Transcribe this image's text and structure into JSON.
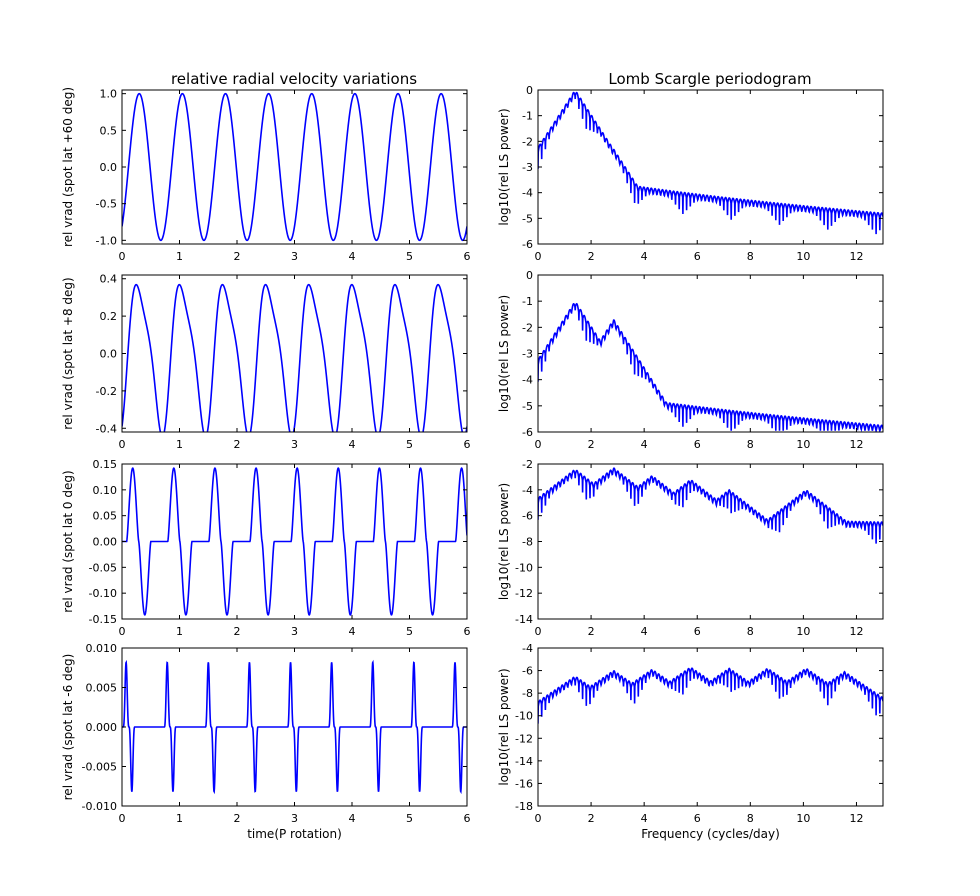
{
  "titles": {
    "left": "relative radial velocity variations",
    "right": "Lomb Scargle periodogram"
  },
  "colors": {
    "line": "#0000ff",
    "axes": "#000000",
    "background": "#ffffff"
  },
  "chart_data": [
    {
      "type": "line",
      "column": "left",
      "row": 0,
      "title": "relative radial velocity variations",
      "xlabel": "",
      "ylabel": "rel vrad (spot lat +60 deg)",
      "xlim": [
        0,
        6
      ],
      "ylim": [
        -1.05,
        1.05
      ],
      "xticks": [
        0,
        1,
        2,
        3,
        4,
        5,
        6
      ],
      "xticklabels": [
        "0",
        "1",
        "2",
        "3",
        "4",
        "5",
        "6"
      ],
      "yticks": [
        -1.0,
        -0.5,
        0.0,
        0.5,
        1.0
      ],
      "yticklabels": [
        "-1.0",
        "-0.5",
        "0.0",
        "0.5",
        "1.0"
      ],
      "grid": false,
      "series": [
        {
          "model": "sine",
          "period": 0.75,
          "amplitude": 1.0,
          "phase_offset": 0.3
        }
      ]
    },
    {
      "type": "line",
      "column": "left",
      "row": 1,
      "xlabel": "",
      "ylabel": "rel vrad (spot lat +8 deg)",
      "xlim": [
        0,
        6
      ],
      "ylim": [
        -0.42,
        0.42
      ],
      "xticks": [
        0,
        1,
        2,
        3,
        4,
        5,
        6
      ],
      "xticklabels": [
        "0",
        "1",
        "2",
        "3",
        "4",
        "5",
        "6"
      ],
      "yticks": [
        -0.4,
        -0.2,
        0.0,
        0.2,
        0.4
      ],
      "yticklabels": [
        "-0.4",
        "-0.2",
        "0.0",
        "0.2",
        "0.4"
      ],
      "grid": false,
      "series": [
        {
          "model": "skewed_sine",
          "period": 0.75,
          "amplitude": 0.4,
          "phase_offset": 0.3
        }
      ]
    },
    {
      "type": "line",
      "column": "left",
      "row": 2,
      "xlabel": "",
      "ylabel": "rel vrad (spot lat 0 deg)",
      "xlim": [
        0,
        6
      ],
      "ylim": [
        -0.15,
        0.15
      ],
      "xticks": [
        0,
        1,
        2,
        3,
        4,
        5,
        6
      ],
      "xticklabels": [
        "0",
        "1",
        "2",
        "3",
        "4",
        "5",
        "6"
      ],
      "yticks": [
        -0.15,
        -0.1,
        -0.05,
        0.0,
        0.05,
        0.1,
        0.15
      ],
      "yticklabels": [
        "-0.15",
        "-0.10",
        "-0.05",
        "0.00",
        "0.05",
        "0.10",
        "0.15"
      ],
      "grid": false,
      "series": [
        {
          "model": "pulse_pair",
          "period": 0.715,
          "amplitude": 0.142,
          "first_peak": 0.26,
          "active_width": 0.42
        }
      ]
    },
    {
      "type": "line",
      "column": "left",
      "row": 3,
      "xlabel": "time(P rotation)",
      "ylabel": "rel vrad (spot lat -6 deg)",
      "xlim": [
        0,
        6
      ],
      "ylim": [
        -0.01,
        0.01
      ],
      "xticks": [
        0,
        1,
        2,
        3,
        4,
        5,
        6
      ],
      "xticklabels": [
        "0",
        "1",
        "2",
        "3",
        "4",
        "5",
        "6"
      ],
      "yticks": [
        -0.01,
        -0.005,
        0.0,
        0.005,
        0.01
      ],
      "yticklabels": [
        "-0.010",
        "-0.005",
        "0.000",
        "0.005",
        "0.010"
      ],
      "grid": false,
      "series": [
        {
          "model": "spike_pair",
          "period": 0.715,
          "amplitude": 0.0082,
          "first_peak": 0.2,
          "active_width": 0.2
        }
      ]
    },
    {
      "type": "line",
      "column": "right",
      "row": 0,
      "title": "Lomb Scargle periodogram",
      "xlabel": "",
      "ylabel": "log10(rel LS power)",
      "xlim": [
        0,
        13
      ],
      "ylim": [
        -6,
        0
      ],
      "xticks": [
        0,
        2,
        4,
        6,
        8,
        10,
        12
      ],
      "xticklabels": [
        "0",
        "2",
        "4",
        "6",
        "8",
        "10",
        "12"
      ],
      "yticks": [
        -6,
        -5,
        -4,
        -3,
        -2,
        -1,
        0
      ],
      "yticklabels": [
        "-6",
        "-5",
        "-4",
        "-3",
        "-2",
        "-1",
        "0"
      ],
      "grid": false,
      "peaks": [
        {
          "x": 1.4,
          "y": 0.0
        },
        {
          "x": 2.85,
          "y": -2.3
        }
      ],
      "baseline": {
        "start": -2.8,
        "end": -4.8
      }
    },
    {
      "type": "line",
      "column": "right",
      "row": 1,
      "xlabel": "",
      "ylabel": "log10(rel LS power)",
      "xlim": [
        0,
        13
      ],
      "ylim": [
        -6,
        0
      ],
      "xticks": [
        0,
        2,
        4,
        6,
        8,
        10,
        12
      ],
      "xticklabels": [
        "0",
        "2",
        "4",
        "6",
        "8",
        "10",
        "12"
      ],
      "yticks": [
        -6,
        -5,
        -4,
        -3,
        -2,
        -1,
        0
      ],
      "yticklabels": [
        "-6",
        "-5",
        "-4",
        "-3",
        "-2",
        "-1",
        "0"
      ],
      "grid": false,
      "peaks": [
        {
          "x": 1.4,
          "y": -1.0
        },
        {
          "x": 2.85,
          "y": -1.7
        }
      ],
      "baseline": {
        "start": -3.8,
        "end": -5.75
      }
    },
    {
      "type": "line",
      "column": "right",
      "row": 2,
      "xlabel": "",
      "ylabel": "log10(rel LS power)",
      "xlim": [
        0,
        13
      ],
      "ylim": [
        -14,
        -2
      ],
      "xticks": [
        0,
        2,
        4,
        6,
        8,
        10,
        12
      ],
      "xticklabels": [
        "0",
        "2",
        "4",
        "6",
        "8",
        "10",
        "12"
      ],
      "yticks": [
        -14,
        -12,
        -10,
        -8,
        -6,
        -4,
        -2
      ],
      "yticklabels": [
        "-14",
        "-12",
        "-10",
        "-8",
        "-6",
        "-4",
        "-2"
      ],
      "grid": false,
      "peaks": [
        {
          "x": 1.4,
          "y": -2.4
        },
        {
          "x": 2.85,
          "y": -2.3
        },
        {
          "x": 4.3,
          "y": -2.9
        },
        {
          "x": 5.75,
          "y": -3.2
        },
        {
          "x": 7.2,
          "y": -4.0
        },
        {
          "x": 10.1,
          "y": -4.0
        }
      ],
      "baseline": {
        "start": -5.5,
        "end": -6.5
      }
    },
    {
      "type": "line",
      "column": "right",
      "row": 3,
      "xlabel": "Frequency (cycles/day)",
      "ylabel": "log10(rel LS power)",
      "xlim": [
        0,
        13
      ],
      "ylim": [
        -18,
        -4
      ],
      "xticks": [
        0,
        2,
        4,
        6,
        8,
        10,
        12
      ],
      "xticklabels": [
        "0",
        "2",
        "4",
        "6",
        "8",
        "10",
        "12"
      ],
      "yticks": [
        -18,
        -16,
        -14,
        -12,
        -10,
        -8,
        -6,
        -4
      ],
      "yticklabels": [
        "-18",
        "-16",
        "-14",
        "-12",
        "-10",
        "-8",
        "-6",
        "-4"
      ],
      "grid": false,
      "peaks": [
        {
          "x": 1.4,
          "y": -6.5
        },
        {
          "x": 2.85,
          "y": -6.0
        },
        {
          "x": 4.3,
          "y": -5.9
        },
        {
          "x": 5.75,
          "y": -5.7
        },
        {
          "x": 7.2,
          "y": -5.8
        },
        {
          "x": 8.65,
          "y": -5.8
        },
        {
          "x": 10.1,
          "y": -5.8
        },
        {
          "x": 11.55,
          "y": -6.1
        }
      ],
      "baseline": {
        "start": -9.6,
        "end": -8.4
      }
    }
  ]
}
